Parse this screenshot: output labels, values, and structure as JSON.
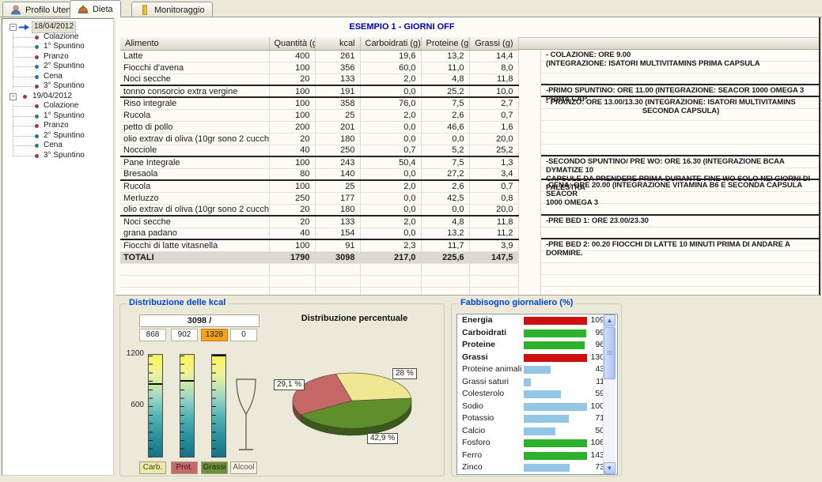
{
  "tabs": {
    "items": [
      {
        "label": "Profilo Utente",
        "icon": "user-icon",
        "active": false
      },
      {
        "label": "Dieta",
        "icon": "food-dome-icon",
        "active": true
      },
      {
        "label": "Monitoraggio",
        "icon": "ruler-icon",
        "active": false
      }
    ]
  },
  "tree": {
    "bullet_colors": {
      "red": "#993a44",
      "blue": "#2e7296",
      "arrow": "#2255cc"
    },
    "days": [
      {
        "date": "18/04/2012",
        "marker": "arrow",
        "selected": true,
        "meals": [
          {
            "label": "Colazione",
            "bullet": "red"
          },
          {
            "label": "1° Spuntino",
            "bullet": "blue"
          },
          {
            "label": "Pranzo",
            "bullet": "red"
          },
          {
            "label": "2° Spuntino",
            "bullet": "blue"
          },
          {
            "label": "Cena",
            "bullet": "blue"
          },
          {
            "label": "3° Spuntino",
            "bullet": "red"
          }
        ]
      },
      {
        "date": "19/04/2012",
        "marker": "red",
        "selected": false,
        "meals": [
          {
            "label": "Colazione",
            "bullet": "red"
          },
          {
            "label": "1° Spuntino",
            "bullet": "blue"
          },
          {
            "label": "Pranzo",
            "bullet": "red"
          },
          {
            "label": "2° Spuntino",
            "bullet": "blue"
          },
          {
            "label": "Cena",
            "bullet": "blue"
          },
          {
            "label": "3° Spuntino",
            "bullet": "red"
          }
        ]
      }
    ]
  },
  "main": {
    "title": "ESEMPIO 1 - GIORNI OFF",
    "table": {
      "columns": [
        "Alimento",
        "Quantità (g)",
        "kcal",
        "Carboidrati (g)",
        "Proteine (g)",
        "Grassi (g)"
      ],
      "rows": [
        [
          "Latte",
          "400",
          "261",
          "19,6",
          "13,2",
          "14,4"
        ],
        [
          "Fiocchi d'avena",
          "100",
          "356",
          "60,0",
          "11,0",
          "8,0"
        ],
        [
          "Noci secche",
          "20",
          "133",
          "2,0",
          "4,8",
          "11,8"
        ],
        [
          "tonno consorcio extra vergine",
          "100",
          "191",
          "0,0",
          "25,2",
          "10,0"
        ],
        [
          "Riso integrale",
          "100",
          "358",
          "76,0",
          "7,5",
          "2,7"
        ],
        [
          "Rucola",
          "100",
          "25",
          "2,0",
          "2,6",
          "0,7"
        ],
        [
          "petto di pollo",
          "200",
          "201",
          "0,0",
          "46,6",
          "1,6"
        ],
        [
          "olio extrav di oliva (10gr sono 2 cucchiaini)",
          "20",
          "180",
          "0,0",
          "0,0",
          "20,0"
        ],
        [
          "Nocciole",
          "40",
          "250",
          "0,7",
          "5,2",
          "25,2"
        ],
        [
          "Pane Integrale",
          "100",
          "243",
          "50,4",
          "7,5",
          "1,3"
        ],
        [
          "Bresaola",
          "80",
          "140",
          "0,0",
          "27,2",
          "3,4"
        ],
        [
          "Rucola",
          "100",
          "25",
          "2,0",
          "2,6",
          "0,7"
        ],
        [
          "Merluzzo",
          "250",
          "177",
          "0,0",
          "42,5",
          "0,8"
        ],
        [
          "olio extrav di oliva (10gr sono 2 cucchiaini)",
          "20",
          "180",
          "0,0",
          "0,0",
          "20,0"
        ],
        [
          "Noci secche",
          "20",
          "133",
          "2,0",
          "4,8",
          "11,8"
        ],
        [
          "grana padano",
          "40",
          "154",
          "0,0",
          "13,2",
          "11,2"
        ],
        [
          "Fiocchi di latte vitasnella",
          "100",
          "91",
          "2,3",
          "11,7",
          "3,9"
        ]
      ],
      "group_break_after": [
        2,
        3,
        8,
        10,
        13,
        15
      ],
      "totals_label": "TOTALI",
      "totals": [
        "1790",
        "3098",
        "217,0",
        "225,6",
        "147,5"
      ]
    },
    "notes": [
      {
        "start_row": 0,
        "rows": 3,
        "lines": [
          "- COLAZIONE: ORE 9.00",
          "(INTEGRAZIONE: ISATORI MULTIVITAMINS PRIMA CAPSULA"
        ]
      },
      {
        "start_row": 3,
        "rows": 1,
        "lines": [
          "-PRIMO SPUNTINO: ORE 11.00 (INTEGRAZIONE: SEACOR 1000 OMEGA 3 PRIMA CAP."
        ]
      },
      {
        "start_row": 4,
        "rows": 5,
        "center_from": 1,
        "lines": [
          "- PRANZO: ORE 13.00/13.30 (INTEGRAZIONE: ISATORI MULTIVITAMINS",
          "SECONDA CAPSULA)"
        ]
      },
      {
        "start_row": 9,
        "rows": 2,
        "lines": [
          "-SECONDO SPUNTINO/ PRE WO: ORE 16.30 (INTEGRAZIONE BCAA DYMATIZE 10",
          "CAPSULE DA PRENDERE PRIMA-DURANTE-FINE WO SOLO NEI GIORNI DI PALESTRA"
        ]
      },
      {
        "start_row": 11,
        "rows": 3,
        "lines": [
          "-CENA: ORE 20.00 (INTEGRAZIONE VITAMINA B6 E SECONDA CAPSULA SEACOR",
          "1000 OMEGA 3"
        ]
      },
      {
        "start_row": 14,
        "rows": 2,
        "lines": [
          "-PRE BED 1: ORE 23.00/23.30"
        ]
      },
      {
        "start_row": 16,
        "rows": 1,
        "lines": [
          "-PRE BED 2: 00.20 FIOCCHI DI LATTE 10 MINUTI PRIMA DI ANDARE A DORMIRE."
        ]
      }
    ]
  },
  "chart_data": [
    {
      "type": "bar",
      "title": "Distribuzione delle kcal",
      "total_label": "3098 /",
      "categories": [
        "Carb.",
        "Prot.",
        "Grassi",
        "Alcool"
      ],
      "values": [
        868,
        902,
        1328,
        0
      ],
      "highlight_index": 2,
      "highlight_color": "#f6a21d",
      "ylim": [
        0,
        1200
      ],
      "axis_ticks": [
        "1200",
        "600"
      ],
      "category_colors": [
        "#ece9a2",
        "#c9686a",
        "#6e8f38",
        "#f6f2e0"
      ],
      "category_text_colors": [
        "#4a4a20",
        "#461010",
        "#15260a",
        "#555"
      ]
    },
    {
      "type": "pie",
      "title": "Distribuzione percentuale",
      "labels": [
        "42,9 %",
        "29,1 %",
        "28 %"
      ],
      "values": [
        42.9,
        29.1,
        28
      ],
      "colors": [
        "#5e8f2a",
        "#c66767",
        "#efe792"
      ],
      "start_angle_deg": -5
    },
    {
      "type": "bar",
      "title": "Fabbisogno giornaliero (%)",
      "categories": [
        "Energia",
        "Carboidrati",
        "Proteine",
        "Grassi",
        "Proteine animali",
        "Grassi saturi",
        "Colesterolo",
        "Sodio",
        "Potassio",
        "Calcio",
        "Fosforo",
        "Ferro",
        "Zinco"
      ],
      "values": [
        109,
        99,
        96,
        130,
        43,
        11,
        59,
        100,
        71,
        50,
        106,
        143,
        73
      ],
      "colors": [
        "#cc0f0f",
        "#2eb22e",
        "#2eb22e",
        "#cc0f0f",
        "#94c6e7",
        "#94c6e7",
        "#94c6e7",
        "#94c6e7",
        "#94c6e7",
        "#94c6e7",
        "#2eb22e",
        "#2eb22e",
        "#94c6e7"
      ],
      "bold": [
        true,
        true,
        true,
        true,
        false,
        false,
        false,
        false,
        false,
        false,
        false,
        false,
        false
      ],
      "xlim": [
        0,
        100
      ]
    }
  ]
}
